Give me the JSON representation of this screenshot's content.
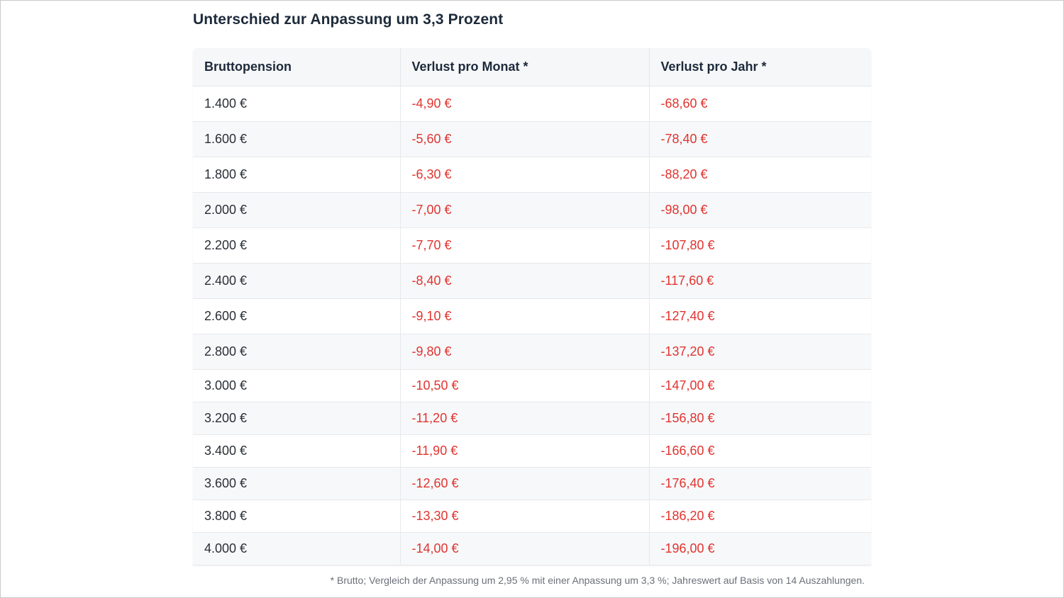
{
  "title": "Unterschied zur Anpassung um 3,3 Prozent",
  "table": {
    "headers": [
      "Bruttopension",
      "Verlust pro Monat *",
      "Verlust pro Jahr *"
    ],
    "rows": [
      [
        "1.400 €",
        "-4,90 €",
        "-68,60 €"
      ],
      [
        "1.600 €",
        "-5,60 €",
        "-78,40 €"
      ],
      [
        "1.800 €",
        "-6,30 €",
        "-88,20 €"
      ],
      [
        "2.000 €",
        "-7,00 €",
        "-98,00 €"
      ],
      [
        "2.200 €",
        "-7,70 €",
        "-107,80 €"
      ],
      [
        "2.400 €",
        "-8,40 €",
        "-117,60 €"
      ],
      [
        "2.600 €",
        "-9,10 €",
        "-127,40 €"
      ],
      [
        "2.800 €",
        "-9,80 €",
        "-137,20 €"
      ],
      [
        "3.000 €",
        "-10,50 €",
        "-147,00 €"
      ],
      [
        "3.200 €",
        "-11,20 €",
        "-156,80 €"
      ],
      [
        "3.400 €",
        "-11,90 €",
        "-166,60 €"
      ],
      [
        "3.600 €",
        "-12,60 €",
        "-176,40 €"
      ],
      [
        "3.800 €",
        "-13,30 €",
        "-186,20 €"
      ],
      [
        "4.000 €",
        "-14,00 €",
        "-196,00 €"
      ]
    ]
  },
  "footnote": "* Brutto; Vergleich der Anpassung um 2,95 % mit einer Anpassung um 3,3 %; Jahreswert auf Basis von 14 Auszahlungen.",
  "colors": {
    "negative": "#e0342f",
    "text": "#1d2a3a",
    "header_bg": "#f6f7f9",
    "stripe_bg": "#f7f8fa"
  }
}
